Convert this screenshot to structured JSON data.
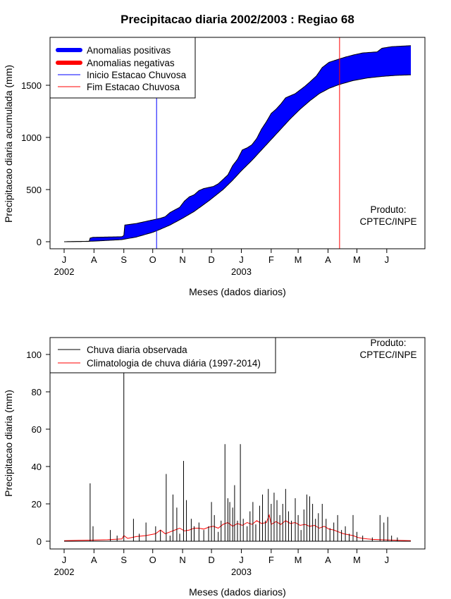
{
  "colors": {
    "positive": "#0000ff",
    "negative": "#ff0000",
    "onset": "#0000ff",
    "end": "#ff0000",
    "observed": "#000000",
    "climatology": "#ff0000"
  },
  "chart_data": [
    {
      "type": "area",
      "title": "Precipitacao diaria 2002/2003 : Regiao 68",
      "xlabel": "Meses (dados diarios)",
      "ylabel": "Precipitacao diaria acumulada (mm)",
      "ylim": [
        0,
        1880
      ],
      "yticks": [
        0,
        500,
        1000,
        1500
      ],
      "xlim": [
        0,
        365
      ],
      "month_ticks": [
        {
          "label": "J",
          "day": 0
        },
        {
          "label": "A",
          "day": 31
        },
        {
          "label": "S",
          "day": 62
        },
        {
          "label": "O",
          "day": 92
        },
        {
          "label": "N",
          "day": 123
        },
        {
          "label": "D",
          "day": 153
        },
        {
          "label": "J",
          "day": 184
        },
        {
          "label": "F",
          "day": 215
        },
        {
          "label": "M",
          "day": 243
        },
        {
          "label": "A",
          "day": 274
        },
        {
          "label": "M",
          "day": 304
        },
        {
          "label": "J",
          "day": 335
        }
      ],
      "year_labels": [
        {
          "label": "2002",
          "day": 0
        },
        {
          "label": "2003",
          "day": 184
        }
      ],
      "legend": [
        {
          "label": "Anomalias positivas",
          "style": "thick",
          "color": "#0000ff"
        },
        {
          "label": "Anomalias negativas",
          "style": "thick",
          "color": "#ff0000"
        },
        {
          "label": "Inicio Estacao Chuvosa",
          "style": "thin",
          "color": "#0000ff"
        },
        {
          "label": "Fim Estacao Chuvosa",
          "style": "thin",
          "color": "#ff0000"
        }
      ],
      "onset_day": 96,
      "end_day": 286,
      "credit": [
        "Produto:",
        "CPTEC/INPE"
      ],
      "observed_cumulative": [
        [
          0,
          0
        ],
        [
          26,
          3
        ],
        [
          27,
          35
        ],
        [
          30,
          42
        ],
        [
          45,
          45
        ],
        [
          60,
          48
        ],
        [
          62,
          60
        ],
        [
          63,
          160
        ],
        [
          75,
          175
        ],
        [
          85,
          195
        ],
        [
          95,
          215
        ],
        [
          100,
          225
        ],
        [
          105,
          240
        ],
        [
          110,
          280
        ],
        [
          120,
          330
        ],
        [
          125,
          390
        ],
        [
          130,
          430
        ],
        [
          135,
          450
        ],
        [
          140,
          490
        ],
        [
          145,
          510
        ],
        [
          155,
          530
        ],
        [
          160,
          555
        ],
        [
          170,
          640
        ],
        [
          175,
          730
        ],
        [
          180,
          790
        ],
        [
          185,
          880
        ],
        [
          190,
          900
        ],
        [
          195,
          930
        ],
        [
          200,
          990
        ],
        [
          205,
          1080
        ],
        [
          210,
          1150
        ],
        [
          215,
          1230
        ],
        [
          220,
          1270
        ],
        [
          225,
          1320
        ],
        [
          230,
          1380
        ],
        [
          240,
          1420
        ],
        [
          250,
          1490
        ],
        [
          255,
          1530
        ],
        [
          262,
          1590
        ],
        [
          268,
          1670
        ],
        [
          275,
          1720
        ],
        [
          285,
          1750
        ],
        [
          292,
          1770
        ],
        [
          300,
          1790
        ],
        [
          310,
          1810
        ],
        [
          325,
          1820
        ],
        [
          330,
          1855
        ],
        [
          340,
          1870
        ],
        [
          360,
          1880
        ]
      ],
      "climatology_cumulative": [
        [
          0,
          0
        ],
        [
          30,
          5
        ],
        [
          60,
          20
        ],
        [
          75,
          45
        ],
        [
          92,
          90
        ],
        [
          100,
          120
        ],
        [
          110,
          160
        ],
        [
          123,
          225
        ],
        [
          135,
          290
        ],
        [
          150,
          390
        ],
        [
          165,
          500
        ],
        [
          175,
          590
        ],
        [
          184,
          680
        ],
        [
          195,
          780
        ],
        [
          205,
          880
        ],
        [
          215,
          980
        ],
        [
          225,
          1080
        ],
        [
          235,
          1180
        ],
        [
          245,
          1270
        ],
        [
          255,
          1350
        ],
        [
          265,
          1420
        ],
        [
          275,
          1470
        ],
        [
          285,
          1505
        ],
        [
          300,
          1545
        ],
        [
          315,
          1570
        ],
        [
          330,
          1585
        ],
        [
          345,
          1595
        ],
        [
          360,
          1600
        ]
      ]
    },
    {
      "type": "line",
      "xlabel": "Meses (dados diarios)",
      "ylabel": "Precipitacao diaria (mm)",
      "ylim": [
        0,
        110
      ],
      "yticks": [
        0,
        20,
        40,
        60,
        80,
        100
      ],
      "xlim": [
        0,
        365
      ],
      "month_ticks": [
        {
          "label": "J",
          "day": 0
        },
        {
          "label": "A",
          "day": 31
        },
        {
          "label": "S",
          "day": 62
        },
        {
          "label": "O",
          "day": 92
        },
        {
          "label": "N",
          "day": 123
        },
        {
          "label": "D",
          "day": 153
        },
        {
          "label": "J",
          "day": 184
        },
        {
          "label": "F",
          "day": 215
        },
        {
          "label": "M",
          "day": 243
        },
        {
          "label": "A",
          "day": 274
        },
        {
          "label": "M",
          "day": 304
        },
        {
          "label": "J",
          "day": 335
        }
      ],
      "year_labels": [
        {
          "label": "2002",
          "day": 0
        },
        {
          "label": "2003",
          "day": 184
        }
      ],
      "legend": [
        {
          "label": "Chuva diaria observada",
          "style": "thin",
          "color": "#000000"
        },
        {
          "label": "Climatologia de chuva diária (1997-2014)",
          "style": "thin",
          "color": "#ff0000"
        }
      ],
      "credit": [
        "Produto:",
        "CPTEC/INPE"
      ],
      "series": [
        {
          "name": "Chuva diaria observada",
          "type": "spikes",
          "points": [
            [
              27,
              31
            ],
            [
              30,
              8
            ],
            [
              48,
              6
            ],
            [
              55,
              3
            ],
            [
              62,
              115
            ],
            [
              72,
              12
            ],
            [
              78,
              4
            ],
            [
              85,
              10
            ],
            [
              95,
              8
            ],
            [
              100,
              6
            ],
            [
              106,
              36
            ],
            [
              110,
              3
            ],
            [
              113,
              25
            ],
            [
              117,
              18
            ],
            [
              120,
              4
            ],
            [
              124,
              43
            ],
            [
              127,
              22
            ],
            [
              132,
              12
            ],
            [
              135,
              8
            ],
            [
              140,
              10
            ],
            [
              145,
              6
            ],
            [
              150,
              8
            ],
            [
              153,
              21
            ],
            [
              156,
              14
            ],
            [
              160,
              5
            ],
            [
              163,
              11
            ],
            [
              167,
              52
            ],
            [
              170,
              23
            ],
            [
              172,
              21
            ],
            [
              175,
              18
            ],
            [
              177,
              30
            ],
            [
              180,
              11
            ],
            [
              183,
              52
            ],
            [
              186,
              12
            ],
            [
              190,
              8
            ],
            [
              193,
              16
            ],
            [
              196,
              21
            ],
            [
              199,
              9
            ],
            [
              203,
              19
            ],
            [
              206,
              25
            ],
            [
              209,
              11
            ],
            [
              212,
              28
            ],
            [
              215,
              20
            ],
            [
              218,
              26
            ],
            [
              221,
              22
            ],
            [
              224,
              14
            ],
            [
              227,
              20
            ],
            [
              230,
              28
            ],
            [
              233,
              16
            ],
            [
              236,
              11
            ],
            [
              240,
              23
            ],
            [
              243,
              14
            ],
            [
              246,
              6
            ],
            [
              249,
              17
            ],
            [
              252,
              25
            ],
            [
              255,
              24
            ],
            [
              258,
              20
            ],
            [
              261,
              12
            ],
            [
              264,
              15
            ],
            [
              268,
              20
            ],
            [
              272,
              12
            ],
            [
              276,
              7
            ],
            [
              280,
              10
            ],
            [
              284,
              14
            ],
            [
              288,
              6
            ],
            [
              292,
              8
            ],
            [
              296,
              4
            ],
            [
              300,
              14
            ],
            [
              304,
              5
            ],
            [
              310,
              3
            ],
            [
              320,
              2
            ],
            [
              328,
              14
            ],
            [
              332,
              10
            ],
            [
              336,
              13
            ],
            [
              340,
              3
            ],
            [
              346,
              2
            ]
          ]
        },
        {
          "name": "Climatologia de chuva diária (1997-2014)",
          "type": "line",
          "points": [
            [
              0,
              0.3
            ],
            [
              15,
              0.5
            ],
            [
              30,
              0.6
            ],
            [
              45,
              0.8
            ],
            [
              60,
              1.2
            ],
            [
              62,
              3
            ],
            [
              66,
              1.5
            ],
            [
              75,
              2.5
            ],
            [
              85,
              3
            ],
            [
              95,
              4
            ],
            [
              100,
              6
            ],
            [
              105,
              4
            ],
            [
              110,
              5
            ],
            [
              115,
              6
            ],
            [
              120,
              7
            ],
            [
              125,
              5.5
            ],
            [
              130,
              6
            ],
            [
              135,
              7
            ],
            [
              140,
              7
            ],
            [
              145,
              6.5
            ],
            [
              150,
              7.5
            ],
            [
              155,
              8
            ],
            [
              160,
              7
            ],
            [
              165,
              9
            ],
            [
              170,
              10
            ],
            [
              175,
              8
            ],
            [
              180,
              9.5
            ],
            [
              185,
              8.5
            ],
            [
              190,
              10
            ],
            [
              195,
              9
            ],
            [
              200,
              11
            ],
            [
              205,
              9.5
            ],
            [
              210,
              10
            ],
            [
              213,
              14
            ],
            [
              215,
              9
            ],
            [
              220,
              10.5
            ],
            [
              225,
              9
            ],
            [
              230,
              11
            ],
            [
              235,
              9.5
            ],
            [
              240,
              10
            ],
            [
              245,
              8.5
            ],
            [
              250,
              9
            ],
            [
              255,
              8
            ],
            [
              260,
              8.5
            ],
            [
              265,
              7
            ],
            [
              270,
              8
            ],
            [
              275,
              6.5
            ],
            [
              280,
              6
            ],
            [
              285,
              5
            ],
            [
              290,
              4
            ],
            [
              295,
              3.5
            ],
            [
              300,
              3
            ],
            [
              305,
              2
            ],
            [
              310,
              1.5
            ],
            [
              315,
              1.2
            ],
            [
              320,
              1
            ],
            [
              330,
              0.8
            ],
            [
              340,
              0.6
            ],
            [
              350,
              0.4
            ],
            [
              360,
              0.3
            ]
          ]
        }
      ]
    }
  ]
}
